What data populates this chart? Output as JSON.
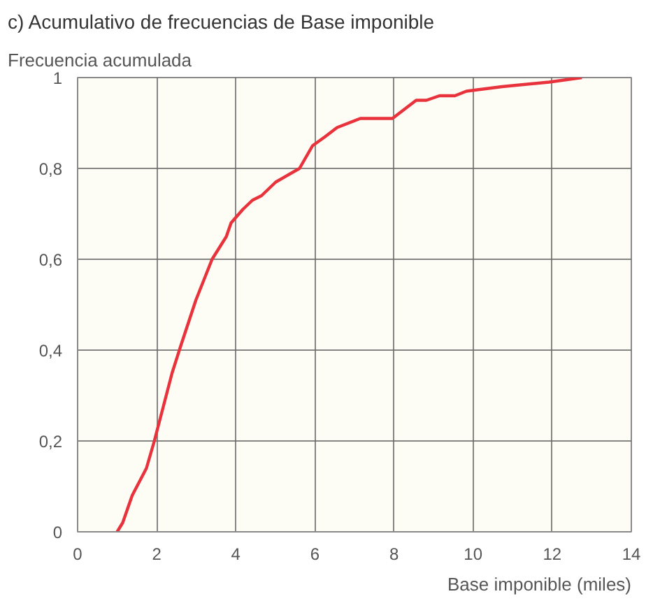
{
  "chart_data": {
    "type": "line",
    "title": "c) Acumulativo de frecuencias de Base imponible",
    "ylabel": "Frecuencia acumulada",
    "xlabel": "Base imponible (miles)",
    "x": [
      1.0,
      1.14,
      1.38,
      1.74,
      1.94,
      2.39,
      2.61,
      2.99,
      3.4,
      3.76,
      3.88,
      4.18,
      4.42,
      4.65,
      5.01,
      5.61,
      5.94,
      6.26,
      6.56,
      7.15,
      7.96,
      8.56,
      8.82,
      9.15,
      9.54,
      9.83,
      10.73,
      11.92,
      12.75
    ],
    "series": [
      {
        "color": "#e8323c",
        "values": [
          0,
          0.02,
          0.08,
          0.14,
          0.2,
          0.35,
          0.41,
          0.51,
          0.6,
          0.65,
          0.68,
          0.71,
          0.73,
          0.74,
          0.77,
          0.8,
          0.85,
          0.87,
          0.89,
          0.91,
          0.91,
          0.95,
          0.95,
          0.96,
          0.96,
          0.97,
          0.98,
          0.99,
          1.0
        ]
      }
    ],
    "xlim": [
      0,
      14
    ],
    "ylim": [
      0,
      1
    ],
    "xticks": [
      0,
      2,
      4,
      6,
      8,
      10,
      12,
      14
    ],
    "yticks": [
      0,
      {
        "value": 0.2,
        "label": "0,2"
      },
      {
        "value": 0.4,
        "label": "0,4"
      },
      {
        "value": 0.6,
        "label": "0,6"
      },
      {
        "value": 0.8,
        "label": "0,8"
      },
      1
    ],
    "grid": true,
    "marker": "none",
    "line_style": "solid"
  }
}
